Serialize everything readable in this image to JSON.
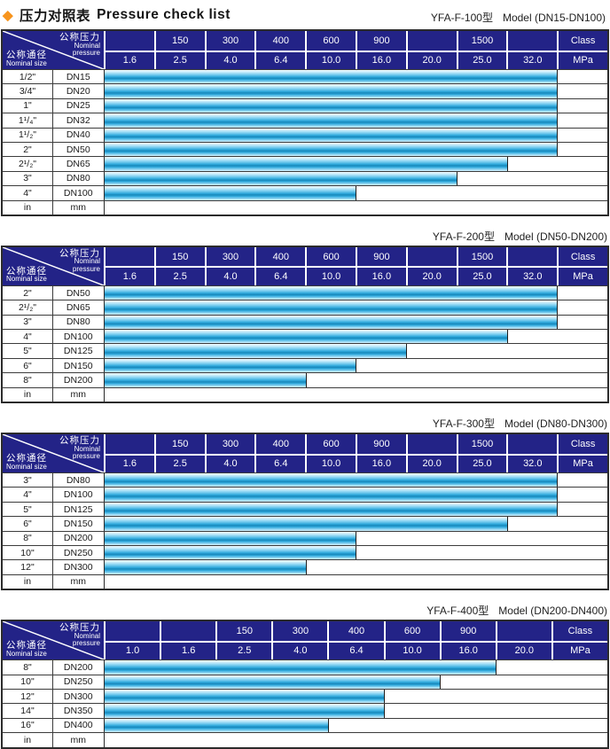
{
  "page": {
    "title_zh": "压力对照表",
    "title_en": "Pressure check list",
    "colors": {
      "diamond_orange": "#f7941d",
      "header_navy": "#232387",
      "bar_cyan": "#29a8dd",
      "bar_dark_stripe": "#1787ba",
      "bar_highlight": "#f0faff",
      "grid_line": "#3c3c3c"
    }
  },
  "header_labels": {
    "pressure_zh": "公称压力",
    "pressure_en_line1": "Nominal",
    "pressure_en_line2": "pressure",
    "size_zh": "公称通径",
    "size_en": "Nominal size"
  },
  "tables": [
    {
      "model": "YFA-F-100型",
      "range": "Model (DN15-DN100)",
      "class_row": [
        "",
        "150",
        "300",
        "400",
        "600",
        "900",
        "",
        "1500",
        "",
        "Class"
      ],
      "mpa_row": [
        "1.6",
        "2.5",
        "4.0",
        "6.4",
        "10.0",
        "16.0",
        "20.0",
        "25.0",
        "32.0",
        "MPa"
      ],
      "rows": [
        {
          "inch": "1/2\"",
          "dn": "DN15",
          "span": 9
        },
        {
          "inch": "3/4\"",
          "dn": "DN20",
          "span": 9
        },
        {
          "inch": "1\"",
          "dn": "DN25",
          "span": 9
        },
        {
          "inch": "1¹/₄\"",
          "dn": "DN32",
          "span": 9
        },
        {
          "inch": "1¹/₂\"",
          "dn": "DN40",
          "span": 9
        },
        {
          "inch": "2\"",
          "dn": "DN50",
          "span": 9
        },
        {
          "inch": "2¹/₂\"",
          "dn": "DN65",
          "span": 8
        },
        {
          "inch": "3\"",
          "dn": "DN80",
          "span": 7
        },
        {
          "inch": "4\"",
          "dn": "DN100",
          "span": 5
        },
        {
          "inch": "in",
          "dn": "mm",
          "span": 0
        }
      ]
    },
    {
      "model": "YFA-F-200型",
      "range": "Model (DN50-DN200)",
      "class_row": [
        "",
        "150",
        "300",
        "400",
        "600",
        "900",
        "",
        "1500",
        "",
        "Class"
      ],
      "mpa_row": [
        "1.6",
        "2.5",
        "4.0",
        "6.4",
        "10.0",
        "16.0",
        "20.0",
        "25.0",
        "32.0",
        "MPa"
      ],
      "rows": [
        {
          "inch": "2\"",
          "dn": "DN50",
          "span": 9
        },
        {
          "inch": "2¹/₂\"",
          "dn": "DN65",
          "span": 9
        },
        {
          "inch": "3\"",
          "dn": "DN80",
          "span": 9
        },
        {
          "inch": "4\"",
          "dn": "DN100",
          "span": 8
        },
        {
          "inch": "5\"",
          "dn": "DN125",
          "span": 6
        },
        {
          "inch": "6\"",
          "dn": "DN150",
          "span": 5
        },
        {
          "inch": "8\"",
          "dn": "DN200",
          "span": 4
        },
        {
          "inch": "in",
          "dn": "mm",
          "span": 0
        }
      ]
    },
    {
      "model": "YFA-F-300型",
      "range": "Model (DN80-DN300)",
      "class_row": [
        "",
        "150",
        "300",
        "400",
        "600",
        "900",
        "",
        "1500",
        "",
        "Class"
      ],
      "mpa_row": [
        "1.6",
        "2.5",
        "4.0",
        "6.4",
        "10.0",
        "16.0",
        "20.0",
        "25.0",
        "32.0",
        "MPa"
      ],
      "rows": [
        {
          "inch": "3\"",
          "dn": "DN80",
          "span": 9
        },
        {
          "inch": "4\"",
          "dn": "DN100",
          "span": 9
        },
        {
          "inch": "5\"",
          "dn": "DN125",
          "span": 9
        },
        {
          "inch": "6\"",
          "dn": "DN150",
          "span": 8
        },
        {
          "inch": "8\"",
          "dn": "DN200",
          "span": 5
        },
        {
          "inch": "10\"",
          "dn": "DN250",
          "span": 5
        },
        {
          "inch": "12\"",
          "dn": "DN300",
          "span": 4
        },
        {
          "inch": "in",
          "dn": "mm",
          "span": 0
        }
      ]
    },
    {
      "model": "YFA-F-400型",
      "range": "Model (DN200-DN400)",
      "class_row": [
        "",
        "",
        "150",
        "300",
        "400",
        "600",
        "900",
        "",
        "Class"
      ],
      "mpa_row": [
        "1.0",
        "1.6",
        "2.5",
        "4.0",
        "6.4",
        "10.0",
        "16.0",
        "20.0",
        "MPa"
      ],
      "rows": [
        {
          "inch": "8\"",
          "dn": "DN200",
          "span": 7
        },
        {
          "inch": "10\"",
          "dn": "DN250",
          "span": 6
        },
        {
          "inch": "12\"",
          "dn": "DN300",
          "span": 5
        },
        {
          "inch": "14\"",
          "dn": "DN350",
          "span": 5
        },
        {
          "inch": "16\"",
          "dn": "DN400",
          "span": 4
        },
        {
          "inch": "in",
          "dn": "mm",
          "span": 0
        }
      ]
    }
  ]
}
